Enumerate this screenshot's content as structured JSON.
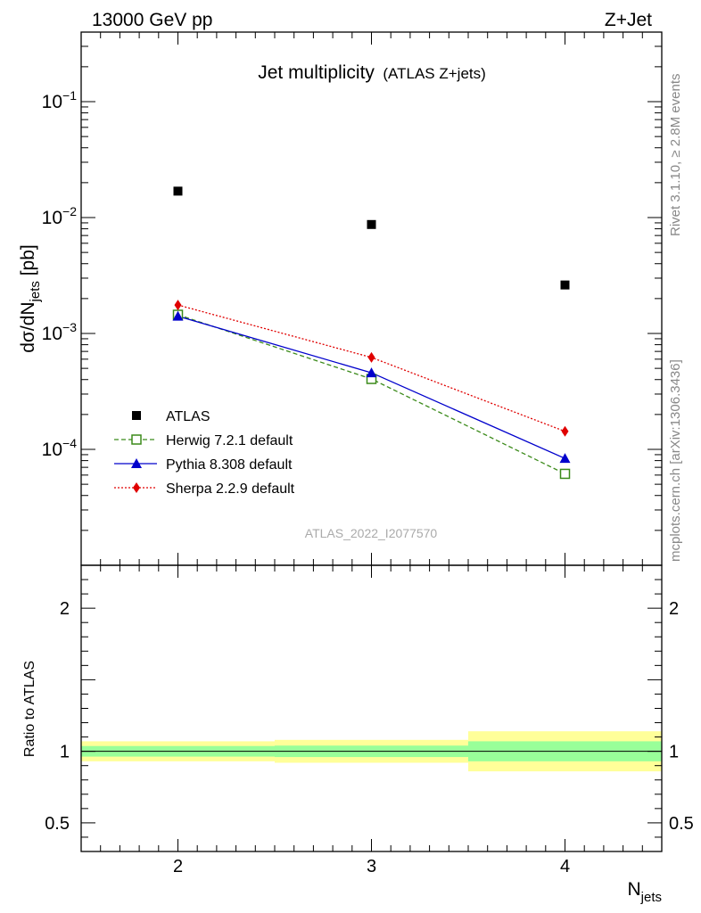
{
  "header": {
    "energy_label": "13000 GeV pp",
    "process_label": "Z+Jet"
  },
  "side": {
    "rivet_label": "Rivet 3.1.10, ≥ 2.8M events",
    "mcplots_label": "mcplots.cern.ch [arXiv:1306.3436]"
  },
  "watermark": "ATLAS_2022_I2077570",
  "chart_data": [
    {
      "type": "scatter",
      "title": "Jet multiplicity",
      "subtitle": "(ATLAS Z+jets)",
      "xlabel": "",
      "ylabel": "dσ/dN",
      "ylabel_sub": "jets",
      "ylabel_unit": " [pb]",
      "yscale": "log",
      "xlim": [
        1.5,
        4.5
      ],
      "ylim": [
        1e-05,
        0.3981
      ],
      "x": [
        2,
        3,
        4
      ],
      "yticks": [
        {
          "value": 0.1,
          "base": "10",
          "exp": "−1"
        },
        {
          "value": 0.01,
          "base": "10",
          "exp": "−2"
        },
        {
          "value": 0.001,
          "base": "10",
          "exp": "−3"
        },
        {
          "value": 0.0001,
          "base": "10",
          "exp": "−4"
        }
      ],
      "legend_position": "lower-left",
      "series": [
        {
          "name": "ATLAS",
          "values": [
            0.0169,
            0.00871,
            0.00262
          ],
          "color": "#000000",
          "marker": "square-filled",
          "line": "none"
        },
        {
          "name": "Herwig 7.2.1 default",
          "values": [
            0.00145,
            0.000405,
            6.15e-05
          ],
          "color": "#3b8a1a",
          "marker": "square-open",
          "line": "dashed"
        },
        {
          "name": "Pythia 8.308 default",
          "values": [
            0.00141,
            0.000458,
            8.35e-05
          ],
          "color": "#0000cc",
          "marker": "triangle",
          "line": "solid"
        },
        {
          "name": "Sherpa 2.2.9 default",
          "values": [
            0.00176,
            0.000621,
            0.000143
          ],
          "color": "#e00000",
          "marker": "diamond",
          "line": "dotted"
        }
      ]
    },
    {
      "type": "area",
      "ylabel": "Ratio to ATLAS",
      "xlabel": "N",
      "xlabel_sub": "jets",
      "xlim": [
        1.5,
        4.5
      ],
      "ylim": [
        0.3,
        2.3
      ],
      "xticks": [
        {
          "value": 2,
          "label": "2"
        },
        {
          "value": 3,
          "label": "3"
        },
        {
          "value": 4,
          "label": "4"
        }
      ],
      "yticks": [
        {
          "value": 2,
          "label": "2"
        },
        {
          "value": 1,
          "label": "1"
        },
        {
          "value": 0.5,
          "label": "0.5"
        }
      ],
      "bins": [
        {
          "x0": 1.5,
          "x1": 2.5,
          "stat": [
            0.963,
            1.037
          ],
          "total": [
            0.93,
            1.07
          ]
        },
        {
          "x0": 2.5,
          "x1": 3.5,
          "stat": [
            0.96,
            1.04
          ],
          "total": [
            0.92,
            1.08
          ]
        },
        {
          "x0": 3.5,
          "x1": 4.5,
          "stat": [
            0.93,
            1.07
          ],
          "total": [
            0.86,
            1.14
          ]
        }
      ],
      "reference": 1,
      "colors": {
        "stat": "#99ff99",
        "total": "#ffff99"
      }
    }
  ]
}
